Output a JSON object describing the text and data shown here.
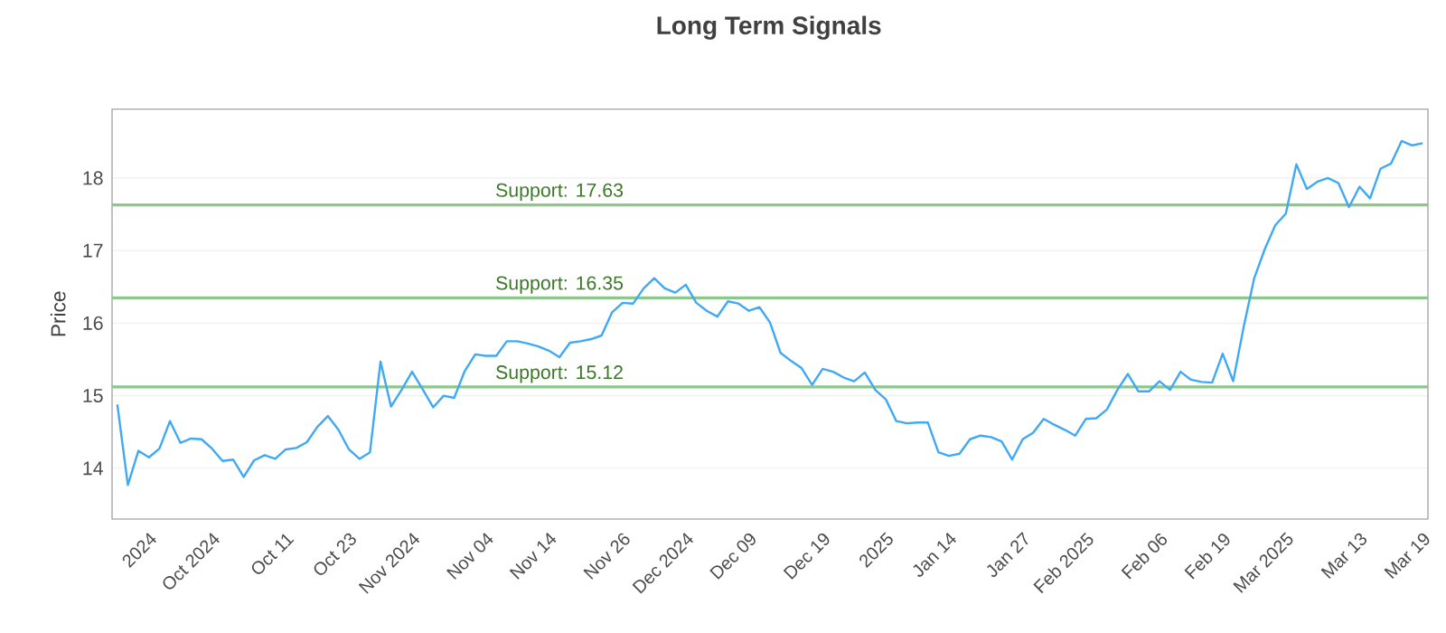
{
  "chart_data": {
    "type": "line",
    "title": "Long Term Signals",
    "ylabel": "Price",
    "categories": [
      null,
      null,
      null,
      "2024",
      null,
      null,
      null,
      null,
      null,
      "Oct 2024",
      null,
      null,
      null,
      null,
      null,
      null,
      "Oct 11",
      null,
      null,
      null,
      null,
      null,
      "Oct 23",
      null,
      null,
      null,
      null,
      null,
      "Nov 2024",
      null,
      null,
      null,
      null,
      null,
      null,
      "Nov 04",
      null,
      null,
      null,
      null,
      null,
      "Nov 14",
      null,
      null,
      null,
      null,
      null,
      null,
      "Nov 26",
      null,
      null,
      null,
      null,
      null,
      "Dec 2024",
      null,
      null,
      null,
      null,
      null,
      "Dec 09",
      null,
      null,
      null,
      null,
      null,
      null,
      "Dec 19",
      null,
      null,
      null,
      null,
      null,
      "2025",
      null,
      null,
      null,
      null,
      null,
      "Jan 14",
      null,
      null,
      null,
      null,
      null,
      null,
      "Jan 27",
      null,
      null,
      null,
      null,
      null,
      "Feb 2025",
      null,
      null,
      null,
      null,
      null,
      null,
      "Feb 06",
      null,
      null,
      null,
      null,
      null,
      "Feb 19",
      null,
      null,
      null,
      null,
      null,
      "Mar 2025",
      null,
      null,
      null,
      null,
      null,
      null,
      "Mar 13",
      null,
      null,
      null,
      null,
      null,
      "Mar 19"
    ],
    "series": [
      {
        "color": "#3fa9f5",
        "values": [
          14.88,
          13.77,
          14.24,
          14.15,
          14.27,
          14.65,
          14.35,
          14.41,
          14.4,
          14.27,
          14.1,
          14.12,
          13.88,
          14.11,
          14.18,
          14.13,
          14.26,
          14.28,
          14.36,
          14.57,
          14.72,
          14.53,
          14.26,
          14.13,
          14.22,
          15.47,
          14.85,
          15.08,
          15.33,
          15.09,
          14.84,
          15.0,
          14.97,
          15.34,
          15.57,
          15.55,
          15.55,
          15.75,
          15.75,
          15.72,
          15.68,
          15.62,
          15.53,
          15.73,
          15.75,
          15.78,
          15.83,
          16.15,
          16.28,
          16.27,
          16.48,
          16.62,
          16.48,
          16.42,
          16.53,
          16.28,
          16.17,
          16.09,
          16.3,
          16.27,
          16.17,
          16.22,
          16.01,
          15.59,
          15.48,
          15.38,
          15.15,
          15.37,
          15.33,
          15.25,
          15.2,
          15.32,
          15.08,
          14.95,
          14.65,
          14.62,
          14.63,
          14.63,
          14.22,
          14.17,
          14.2,
          14.4,
          14.45,
          14.43,
          14.37,
          14.12,
          14.4,
          14.49,
          14.68,
          14.6,
          14.53,
          14.45,
          14.68,
          14.69,
          14.81,
          15.08,
          15.3,
          15.06,
          15.06,
          15.2,
          15.08,
          15.33,
          15.22,
          15.19,
          15.18,
          15.58,
          15.2,
          15.95,
          16.62,
          17.02,
          17.35,
          17.51,
          18.19,
          17.85,
          17.95,
          18.0,
          17.93,
          17.6,
          17.88,
          17.72,
          18.13,
          18.2,
          18.51,
          18.45,
          18.48
        ]
      }
    ],
    "ylim": [
      13.3,
      18.95
    ],
    "yticks": [
      14,
      15,
      16,
      17,
      18
    ],
    "grid": "y",
    "ref_lines": [
      {
        "axis": "y",
        "value": 17.63,
        "label": "Support: 17.63",
        "color": "#8cc88c"
      },
      {
        "axis": "y",
        "value": 16.35,
        "label": "Support: 16.35",
        "color": "#8cc88c"
      },
      {
        "axis": "y",
        "value": 15.12,
        "label": "Support: 15.12",
        "color": "#8cc88c"
      }
    ]
  }
}
